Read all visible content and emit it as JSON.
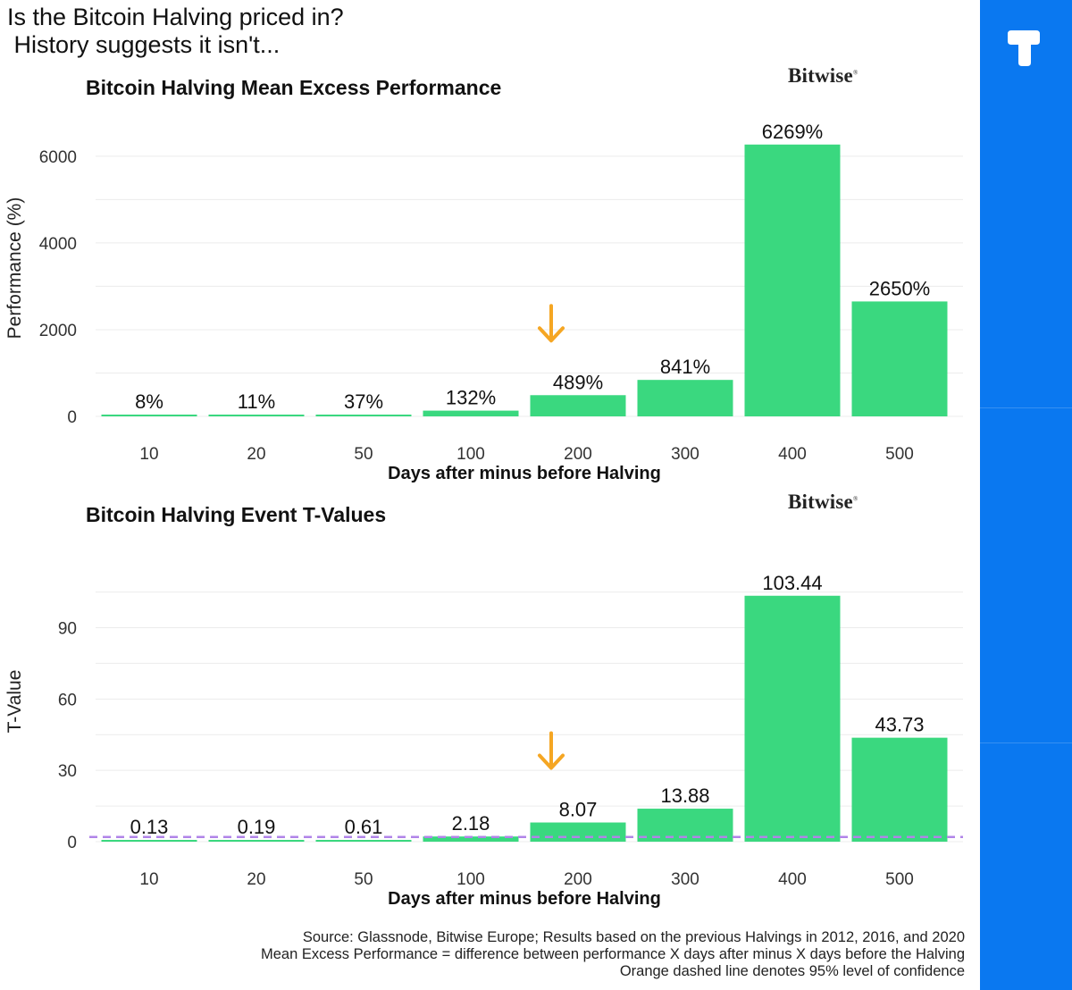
{
  "headline": {
    "line1": "Is the Bitcoin Halving priced in?",
    "line2": " History suggests it isn't..."
  },
  "brand": {
    "name": "Bitwise"
  },
  "colors": {
    "bar": "#3ad87f",
    "arrow": "#f5a623",
    "dashed_line": "#b084e8",
    "sidebar": "#0a78f0",
    "grid": "#ececec"
  },
  "arrow_icon": "arrow-down-icon",
  "chart_data": [
    {
      "type": "bar",
      "title": "Bitcoin Halving Mean Excess Performance",
      "xlabel": "Days after minus before Halving",
      "ylabel": "Performance (%)",
      "categories": [
        "10",
        "20",
        "50",
        "100",
        "200",
        "300",
        "400",
        "500"
      ],
      "values": [
        8,
        11,
        37,
        132,
        489,
        841,
        6269,
        2650
      ],
      "labels": [
        "8%",
        "11%",
        "37%",
        "132%",
        "489%",
        "841%",
        "6269%",
        "2650%"
      ],
      "ylim": [
        0,
        6800
      ],
      "yticks": [
        0,
        2000,
        4000,
        6000
      ],
      "highlight_category": "200",
      "grid": true
    },
    {
      "type": "bar",
      "title": "Bitcoin Halving Event T-Values",
      "xlabel": "Days after minus before Halving",
      "ylabel": "T-Value",
      "categories": [
        "10",
        "20",
        "50",
        "100",
        "200",
        "300",
        "400",
        "500"
      ],
      "values": [
        0.13,
        0.19,
        0.61,
        2.18,
        8.07,
        13.88,
        103.44,
        43.73
      ],
      "labels": [
        "0.13",
        "0.19",
        "0.61",
        "2.18",
        "8.07",
        "13.88",
        "103.44",
        "43.73"
      ],
      "ylim": [
        0,
        115
      ],
      "yticks": [
        0,
        30,
        60,
        90
      ],
      "confidence_line": 1.96,
      "highlight_category": "200",
      "grid": true
    }
  ],
  "footnote": {
    "line1": "Source: Glassnode, Bitwise Europe; Results based on the previous Halvings in 2012, 2016, and 2020",
    "line2": "Mean Excess Performance = difference between performance X days after minus X days before the Halving",
    "line3": "Orange dashed line denotes 95% level of confidence"
  }
}
